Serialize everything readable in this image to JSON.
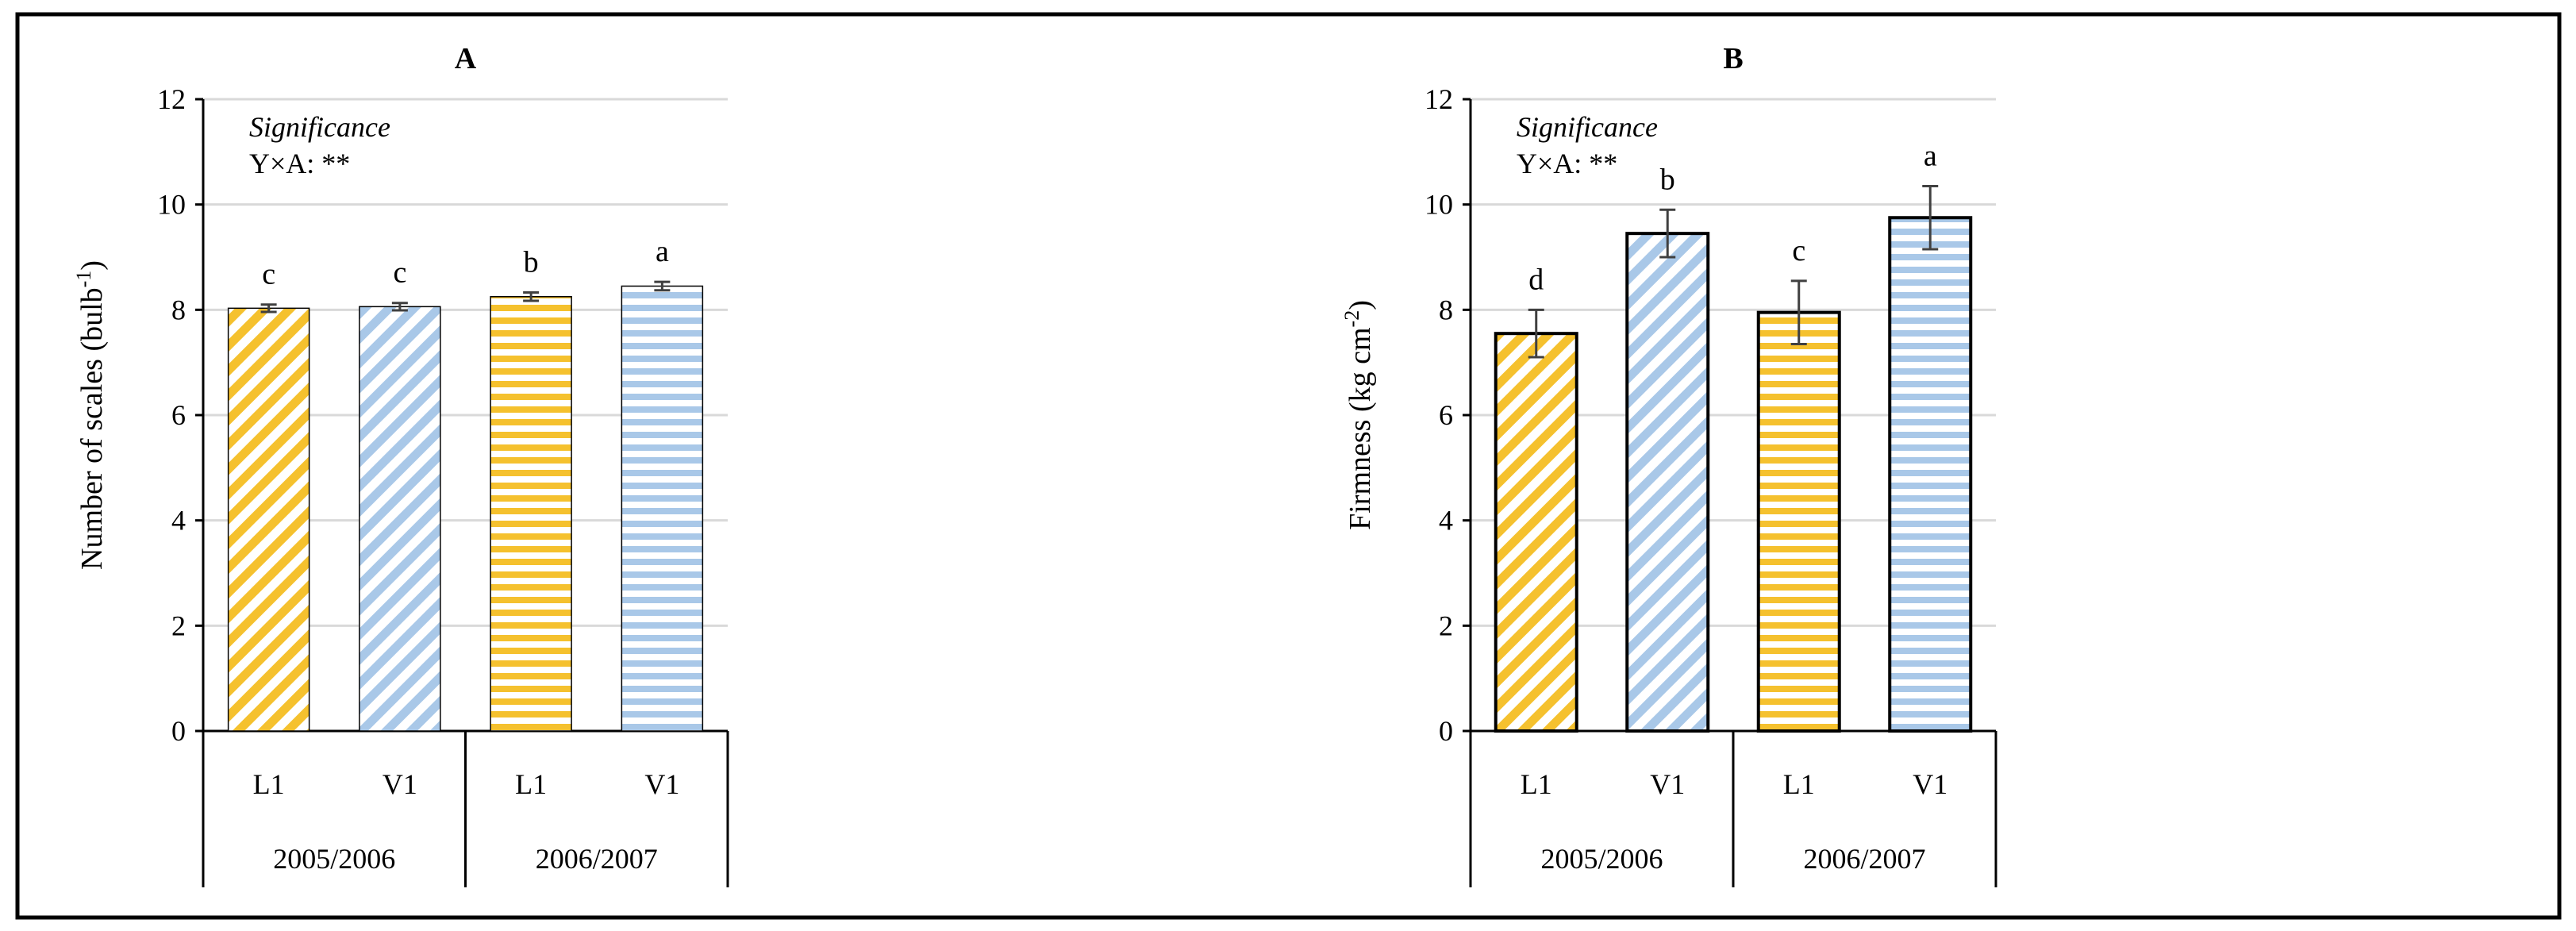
{
  "colors": {
    "L1": "#F5C12E",
    "V1": "#A9C8E8"
  },
  "patterns": {
    "2005/2006": "diagonal-stripes",
    "2006/2007": "horizontal-stripes"
  },
  "chart_data": [
    {
      "type": "bar",
      "title": "A",
      "xlabel": "",
      "ylabel": "Number of scales (bulb",
      "ylabel_sup": "-1",
      "ylabel_end": ")",
      "ylim": [
        0,
        12
      ],
      "yticks": [
        "0",
        "2",
        "4",
        "6",
        "8",
        "10",
        "12"
      ],
      "grid": true,
      "annotation_line1": "Significance",
      "annotation_line2": "Y×A: **",
      "groups": [
        "2005/2006",
        "2006/2007"
      ],
      "categories": [
        "L1",
        "V1",
        "L1",
        "V1"
      ],
      "values": [
        8.03,
        8.06,
        8.25,
        8.45
      ],
      "errors": [
        0.07,
        0.07,
        0.08,
        0.08
      ],
      "letters": [
        "c",
        "c",
        "b",
        "a"
      ],
      "bar_outline": "thin"
    },
    {
      "type": "bar",
      "title": "B",
      "xlabel": "",
      "ylabel": "Firmness (kg cm",
      "ylabel_sup": "-2",
      "ylabel_end": ")",
      "ylim": [
        0,
        12
      ],
      "yticks": [
        "0",
        "2",
        "4",
        "6",
        "8",
        "10",
        "12"
      ],
      "grid": true,
      "annotation_line1": "Significance",
      "annotation_line2": "Y×A: **",
      "groups": [
        "2005/2006",
        "2006/2007"
      ],
      "categories": [
        "L1",
        "V1",
        "L1",
        "V1"
      ],
      "values": [
        7.55,
        9.45,
        7.95,
        9.75
      ],
      "errors": [
        0.45,
        0.45,
        0.6,
        0.6
      ],
      "letters": [
        "d",
        "b",
        "c",
        "a"
      ],
      "bar_outline": "thick"
    }
  ]
}
